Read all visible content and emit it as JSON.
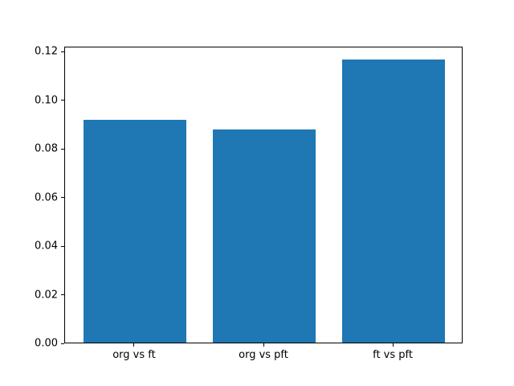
{
  "chart_data": {
    "type": "bar",
    "title": "",
    "xlabel": "",
    "ylabel": "",
    "categories": [
      "org vs ft",
      "org vs pft",
      "ft vs pft"
    ],
    "values": [
      0.0916,
      0.0877,
      0.1164
    ],
    "bar_color": "#1f77b4",
    "bar_width_ratio": 0.8,
    "ylim": [
      0,
      0.1222
    ],
    "ytick_labels": [
      "0.00",
      "0.02",
      "0.04",
      "0.06",
      "0.08",
      "0.10",
      "0.12"
    ],
    "grid": false,
    "legend": null,
    "background_color": "#ffffff",
    "spine_color": "#000000"
  }
}
